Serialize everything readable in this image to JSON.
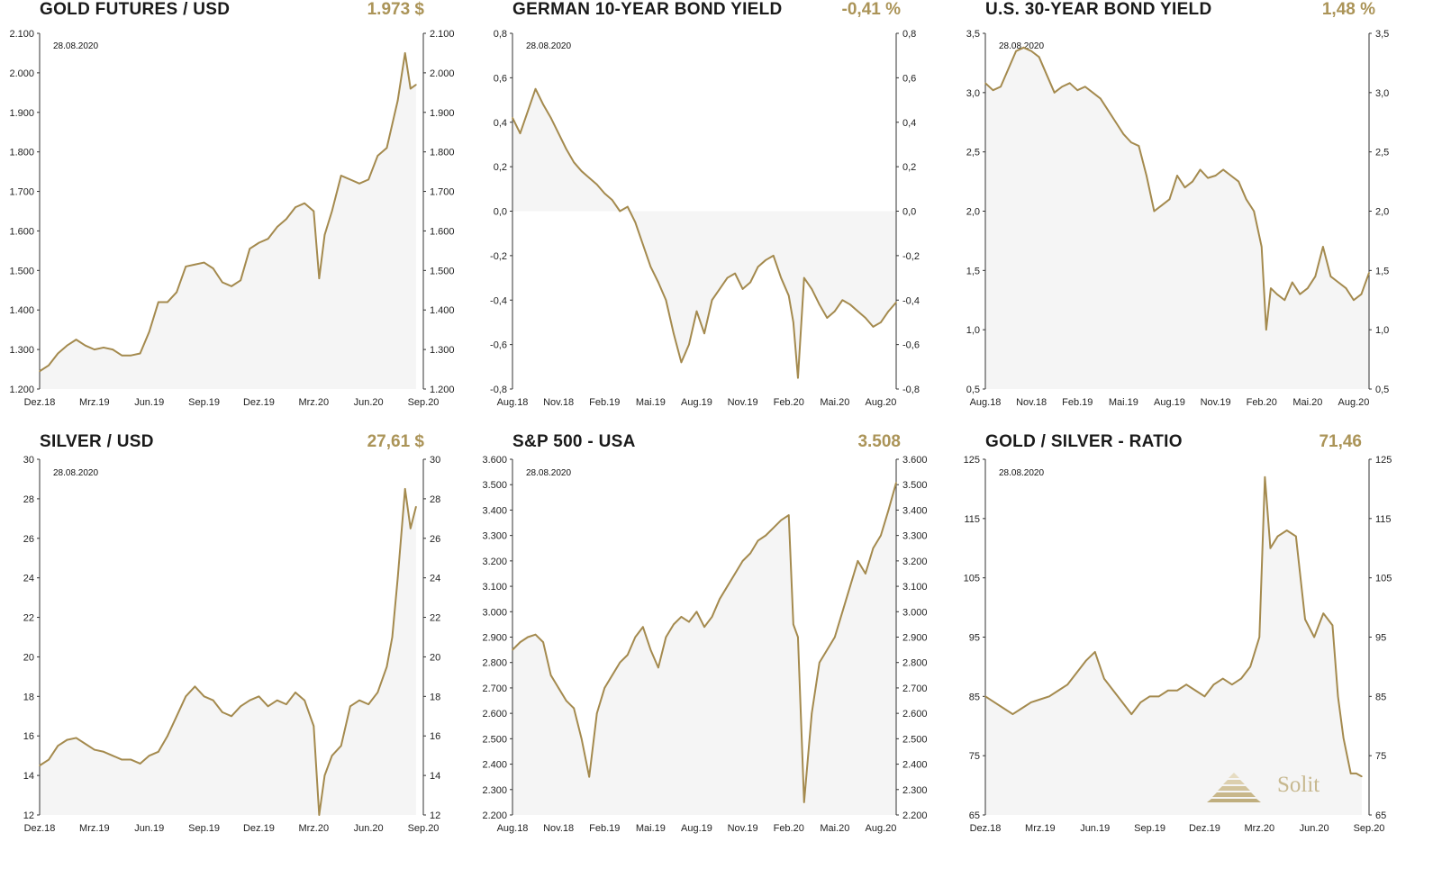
{
  "logo": {
    "text": "Solit"
  },
  "chart_data": [
    {
      "id": "gold",
      "type": "line",
      "title": "GOLD FUTURES / USD",
      "latest_value": "1.973 $",
      "date_label": "28.08.2020",
      "ylim": [
        1200,
        2100
      ],
      "yticks": [
        1200,
        1300,
        1400,
        1500,
        1600,
        1700,
        1800,
        1900,
        2000,
        2100
      ],
      "ytick_labels": [
        "1.200",
        "1.300",
        "1.400",
        "1.500",
        "1.600",
        "1.700",
        "1.800",
        "1.900",
        "2.000",
        "2.100"
      ],
      "xlim": [
        0,
        21
      ],
      "xticks": [
        0,
        3,
        6,
        9,
        12,
        15,
        18,
        21
      ],
      "xtick_labels": [
        "Dez.18",
        "Mrz.19",
        "Jun.19",
        "Sep.19",
        "Dez.19",
        "Mrz.20",
        "Jun.20",
        "Sep.20"
      ],
      "x": [
        0,
        0.5,
        1,
        1.5,
        2,
        2.5,
        3,
        3.5,
        4,
        4.5,
        5,
        5.5,
        6,
        6.5,
        7,
        7.5,
        8,
        8.5,
        9,
        9.5,
        10,
        10.5,
        11,
        11.5,
        12,
        12.5,
        13,
        13.5,
        14,
        14.5,
        15,
        15.3,
        15.6,
        16,
        16.5,
        17,
        17.5,
        18,
        18.5,
        19,
        19.3,
        19.6,
        20,
        20.3,
        20.6
      ],
      "y": [
        1245,
        1260,
        1290,
        1310,
        1325,
        1310,
        1300,
        1305,
        1300,
        1285,
        1285,
        1290,
        1345,
        1420,
        1420,
        1445,
        1510,
        1515,
        1520,
        1505,
        1470,
        1460,
        1475,
        1555,
        1570,
        1580,
        1610,
        1630,
        1660,
        1670,
        1650,
        1480,
        1590,
        1650,
        1740,
        1730,
        1720,
        1730,
        1790,
        1810,
        1870,
        1930,
        2050,
        1960,
        1970
      ]
    },
    {
      "id": "bund",
      "type": "line",
      "title": "GERMAN 10-YEAR BOND YIELD",
      "latest_value": "-0,41 %",
      "date_label": "28.08.2020",
      "ylim": [
        -0.8,
        0.8
      ],
      "yticks": [
        -0.8,
        -0.6,
        -0.4,
        -0.2,
        0,
        0.2,
        0.4,
        0.6,
        0.8
      ],
      "ytick_labels": [
        "-0,8",
        "-0,6",
        "-0,4",
        "-0,2",
        "0,0",
        "0,2",
        "0,4",
        "0,6",
        "0,8"
      ],
      "baseline": 0,
      "xlim": [
        0,
        25
      ],
      "xticks": [
        0,
        3,
        6,
        9,
        12,
        15,
        18,
        21,
        24
      ],
      "xtick_labels": [
        "Aug.18",
        "Nov.18",
        "Feb.19",
        "Mai.19",
        "Aug.19",
        "Nov.19",
        "Feb.20",
        "Mai.20",
        "Aug.20"
      ],
      "x": [
        0,
        0.5,
        1,
        1.5,
        2,
        2.5,
        3,
        3.5,
        4,
        4.5,
        5,
        5.5,
        6,
        6.5,
        7,
        7.5,
        8,
        8.5,
        9,
        9.5,
        10,
        10.5,
        11,
        11.5,
        12,
        12.5,
        13,
        13.5,
        14,
        14.5,
        15,
        15.5,
        16,
        16.5,
        17,
        17.5,
        18,
        18.3,
        18.6,
        19,
        19.5,
        20,
        20.5,
        21,
        21.5,
        22,
        22.5,
        23,
        23.5,
        24,
        24.5,
        25
      ],
      "y": [
        0.42,
        0.35,
        0.45,
        0.55,
        0.48,
        0.42,
        0.35,
        0.28,
        0.22,
        0.18,
        0.15,
        0.12,
        0.08,
        0.05,
        0.0,
        0.02,
        -0.05,
        -0.15,
        -0.25,
        -0.32,
        -0.4,
        -0.55,
        -0.68,
        -0.6,
        -0.45,
        -0.55,
        -0.4,
        -0.35,
        -0.3,
        -0.28,
        -0.35,
        -0.32,
        -0.25,
        -0.22,
        -0.2,
        -0.3,
        -0.38,
        -0.5,
        -0.75,
        -0.3,
        -0.35,
        -0.42,
        -0.48,
        -0.45,
        -0.4,
        -0.42,
        -0.45,
        -0.48,
        -0.52,
        -0.5,
        -0.45,
        -0.41
      ]
    },
    {
      "id": "us30",
      "type": "line",
      "title": "U.S. 30-YEAR BOND YIELD",
      "latest_value": "1,48 %",
      "date_label": "28.08.2020",
      "ylim": [
        0.5,
        3.5
      ],
      "yticks": [
        0.5,
        1.0,
        1.5,
        2.0,
        2.5,
        3.0,
        3.5
      ],
      "ytick_labels": [
        "0,5",
        "1,0",
        "1,5",
        "2,0",
        "2,5",
        "3,0",
        "3,5"
      ],
      "xlim": [
        0,
        25
      ],
      "xticks": [
        0,
        3,
        6,
        9,
        12,
        15,
        18,
        21,
        24
      ],
      "xtick_labels": [
        "Aug.18",
        "Nov.18",
        "Feb.19",
        "Mai.19",
        "Aug.19",
        "Nov.19",
        "Feb.20",
        "Mai.20",
        "Aug.20"
      ],
      "x": [
        0,
        0.5,
        1,
        1.5,
        2,
        2.5,
        3,
        3.5,
        4,
        4.5,
        5,
        5.5,
        6,
        6.5,
        7,
        7.5,
        8,
        8.5,
        9,
        9.5,
        10,
        10.5,
        11,
        11.5,
        12,
        12.5,
        13,
        13.5,
        14,
        14.5,
        15,
        15.5,
        16,
        16.5,
        17,
        17.5,
        18,
        18.3,
        18.6,
        19,
        19.5,
        20,
        20.5,
        21,
        21.5,
        22,
        22.5,
        23,
        23.5,
        24,
        24.5,
        25
      ],
      "y": [
        3.08,
        3.02,
        3.05,
        3.2,
        3.35,
        3.38,
        3.35,
        3.3,
        3.15,
        3.0,
        3.05,
        3.08,
        3.02,
        3.05,
        3.0,
        2.95,
        2.85,
        2.75,
        2.65,
        2.58,
        2.55,
        2.3,
        2.0,
        2.05,
        2.1,
        2.3,
        2.2,
        2.25,
        2.35,
        2.28,
        2.3,
        2.35,
        2.3,
        2.25,
        2.1,
        2.0,
        1.7,
        1.0,
        1.35,
        1.3,
        1.25,
        1.4,
        1.3,
        1.35,
        1.45,
        1.7,
        1.45,
        1.4,
        1.35,
        1.25,
        1.3,
        1.48
      ]
    },
    {
      "id": "silver",
      "type": "line",
      "title": "SILVER / USD",
      "latest_value": "27,61 $",
      "date_label": "28.08.2020",
      "ylim": [
        12,
        30
      ],
      "yticks": [
        12,
        14,
        16,
        18,
        20,
        22,
        24,
        26,
        28,
        30
      ],
      "ytick_labels": [
        "12",
        "14",
        "16",
        "18",
        "20",
        "22",
        "24",
        "26",
        "28",
        "30"
      ],
      "xlim": [
        0,
        21
      ],
      "xticks": [
        0,
        3,
        6,
        9,
        12,
        15,
        18,
        21
      ],
      "xtick_labels": [
        "Dez.18",
        "Mrz.19",
        "Jun.19",
        "Sep.19",
        "Dez.19",
        "Mrz.20",
        "Jun.20",
        "Sep.20"
      ],
      "x": [
        0,
        0.5,
        1,
        1.5,
        2,
        2.5,
        3,
        3.5,
        4,
        4.5,
        5,
        5.5,
        6,
        6.5,
        7,
        7.5,
        8,
        8.5,
        9,
        9.5,
        10,
        10.5,
        11,
        11.5,
        12,
        12.5,
        13,
        13.5,
        14,
        14.5,
        15,
        15.3,
        15.6,
        16,
        16.5,
        17,
        17.5,
        18,
        18.5,
        19,
        19.3,
        19.6,
        20,
        20.3,
        20.6
      ],
      "y": [
        14.5,
        14.8,
        15.5,
        15.8,
        15.9,
        15.6,
        15.3,
        15.2,
        15.0,
        14.8,
        14.8,
        14.6,
        15.0,
        15.2,
        16.0,
        17.0,
        18.0,
        18.5,
        18.0,
        17.8,
        17.2,
        17.0,
        17.5,
        17.8,
        18.0,
        17.5,
        17.8,
        17.6,
        18.2,
        17.8,
        16.5,
        12.0,
        14.0,
        15.0,
        15.5,
        17.5,
        17.8,
        17.6,
        18.2,
        19.5,
        21.0,
        24.0,
        28.5,
        26.5,
        27.6
      ]
    },
    {
      "id": "spx",
      "type": "line",
      "title": "S&P 500 - USA",
      "latest_value": "3.508",
      "date_label": "28.08.2020",
      "ylim": [
        2200,
        3600
      ],
      "yticks": [
        2200,
        2300,
        2400,
        2500,
        2600,
        2700,
        2800,
        2900,
        3000,
        3100,
        3200,
        3300,
        3400,
        3500,
        3600
      ],
      "ytick_labels": [
        "2.200",
        "2.300",
        "2.400",
        "2.500",
        "2.600",
        "2.700",
        "2.800",
        "2.900",
        "3.000",
        "3.100",
        "3.200",
        "3.300",
        "3.400",
        "3.500",
        "3.600"
      ],
      "xlim": [
        0,
        25
      ],
      "xticks": [
        0,
        3,
        6,
        9,
        12,
        15,
        18,
        21,
        24
      ],
      "xtick_labels": [
        "Aug.18",
        "Nov.18",
        "Feb.19",
        "Mai.19",
        "Aug.19",
        "Nov.19",
        "Feb.20",
        "Mai.20",
        "Aug.20"
      ],
      "x": [
        0,
        0.5,
        1,
        1.5,
        2,
        2.5,
        3,
        3.5,
        4,
        4.5,
        5,
        5.5,
        6,
        6.5,
        7,
        7.5,
        8,
        8.5,
        9,
        9.5,
        10,
        10.5,
        11,
        11.5,
        12,
        12.5,
        13,
        13.5,
        14,
        14.5,
        15,
        15.5,
        16,
        16.5,
        17,
        17.5,
        18,
        18.3,
        18.6,
        19,
        19.5,
        20,
        20.5,
        21,
        21.5,
        22,
        22.5,
        23,
        23.5,
        24,
        24.5,
        25
      ],
      "y": [
        2850,
        2880,
        2900,
        2910,
        2880,
        2750,
        2700,
        2650,
        2620,
        2500,
        2350,
        2600,
        2700,
        2750,
        2800,
        2830,
        2900,
        2940,
        2850,
        2780,
        2900,
        2950,
        2980,
        2960,
        3000,
        2940,
        2980,
        3050,
        3100,
        3150,
        3200,
        3230,
        3280,
        3300,
        3330,
        3360,
        3380,
        2950,
        2900,
        2250,
        2600,
        2800,
        2850,
        2900,
        3000,
        3100,
        3200,
        3150,
        3250,
        3300,
        3400,
        3508
      ]
    },
    {
      "id": "ratio",
      "type": "line",
      "title": "GOLD / SILVER - RATIO",
      "latest_value": "71,46",
      "date_label": "28.08.2020",
      "ylim": [
        65,
        125
      ],
      "yticks": [
        65,
        75,
        85,
        95,
        105,
        115,
        125
      ],
      "ytick_labels": [
        "65",
        "75",
        "85",
        "95",
        "105",
        "115",
        "125"
      ],
      "xlim": [
        0,
        21
      ],
      "xticks": [
        0,
        3,
        6,
        9,
        12,
        15,
        18,
        21
      ],
      "xtick_labels": [
        "Dez.18",
        "Mrz.19",
        "Jun.19",
        "Sep.19",
        "Dez.19",
        "Mrz.20",
        "Jun.20",
        "Sep.20"
      ],
      "x": [
        0,
        0.5,
        1,
        1.5,
        2,
        2.5,
        3,
        3.5,
        4,
        4.5,
        5,
        5.5,
        6,
        6.5,
        7,
        7.5,
        8,
        8.5,
        9,
        9.5,
        10,
        10.5,
        11,
        11.5,
        12,
        12.5,
        13,
        13.5,
        14,
        14.5,
        15,
        15.3,
        15.6,
        16,
        16.5,
        17,
        17.5,
        18,
        18.5,
        19,
        19.3,
        19.6,
        20,
        20.3,
        20.6
      ],
      "y": [
        85,
        84,
        83,
        82,
        83,
        84,
        84.5,
        85,
        86,
        87,
        89,
        91,
        92.5,
        88,
        86,
        84,
        82,
        84,
        85,
        85,
        86,
        86,
        87,
        86,
        85,
        87,
        88,
        87,
        88,
        90,
        95,
        122,
        110,
        112,
        113,
        112,
        98,
        95,
        99,
        97,
        85,
        78,
        72,
        72,
        71.5
      ]
    }
  ]
}
